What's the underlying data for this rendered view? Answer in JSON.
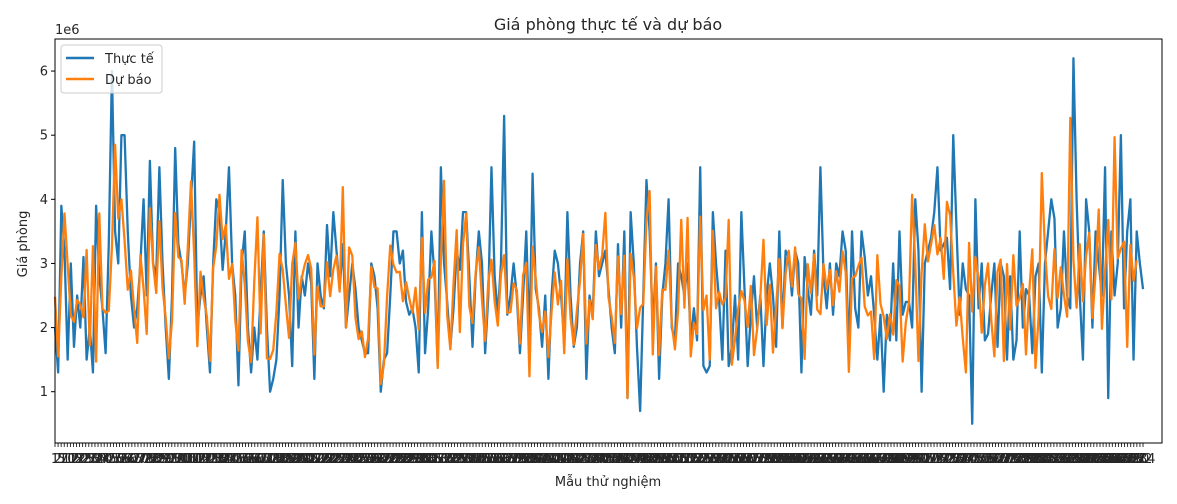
{
  "chart_data": {
    "type": "line",
    "title": "Giá phòng thực tế và dự báo",
    "xlabel": "Mẫu thử nghiệm",
    "ylabel": "Giá phòng",
    "y_offset_label": "1e6",
    "xlim": [
      0,
      350
    ],
    "ylim": [
      0.2,
      6.5
    ],
    "yticks": [
      1,
      2,
      3,
      4,
      5,
      6
    ],
    "x_tick_labels": [
      "1",
      "2",
      "5",
      "7",
      "10",
      "12",
      "15",
      "17",
      "20",
      "22",
      "25",
      "27",
      "30",
      "32",
      "35",
      "37",
      "40",
      "42",
      "45",
      "47",
      "50",
      "52",
      "55",
      "57",
      "60",
      "62",
      "65",
      "67",
      "70",
      "72",
      "75",
      "77",
      "80",
      "82",
      "85",
      "87",
      "90",
      "92",
      "95",
      "97",
      "100",
      "102",
      "105",
      "107",
      "110",
      "112",
      "115",
      "117",
      "120",
      "122",
      "125",
      "127",
      "130",
      "132",
      "135",
      "137",
      "140",
      "142",
      "145",
      "147",
      "150",
      "152",
      "155",
      "157",
      "160",
      "162",
      "165",
      "167",
      "170",
      "172",
      "175",
      "177",
      "180",
      "182",
      "185",
      "187",
      "190",
      "192",
      "195",
      "197",
      "200",
      "202",
      "205",
      "207",
      "210",
      "212",
      "215",
      "217",
      "220",
      "222",
      "225",
      "227",
      "230",
      "232",
      "235",
      "237",
      "240",
      "242",
      "245",
      "247",
      "250",
      "252",
      "255",
      "257",
      "260",
      "262",
      "265",
      "267",
      "270",
      "272",
      "275",
      "277",
      "280",
      "282",
      "285",
      "287",
      "290",
      "292",
      "295",
      "297",
      "300",
      "302",
      "305",
      "307",
      "310",
      "312",
      "315",
      "317",
      "320",
      "322",
      "325",
      "327",
      "330",
      "332",
      "335",
      "337",
      "340",
      "342",
      "345",
      "347",
      "350",
      "352",
      "355",
      "357",
      "360",
      "362",
      "365",
      "367",
      "370",
      "372",
      "375",
      "377",
      "380",
      "382",
      "385",
      "387",
      "390",
      "392",
      "395",
      "397",
      "400",
      "402",
      "405",
      "407",
      "410",
      "412",
      "415",
      "417",
      "420",
      "422",
      "425",
      "427",
      "430",
      "432",
      "435",
      "437",
      "440",
      "442",
      "445",
      "447",
      "450",
      "452",
      "455",
      "457",
      "460",
      "462",
      "465",
      "467",
      "470",
      "472",
      "475",
      "477",
      "480",
      "482",
      "485",
      "487",
      "490",
      "492",
      "495",
      "497",
      "500",
      "502",
      "505",
      "507",
      "510",
      "512",
      "515",
      "517",
      "520",
      "522",
      "525",
      "527",
      "530",
      "532",
      "535",
      "537",
      "540",
      "542",
      "545",
      "547",
      "550",
      "552",
      "555",
      "557",
      "560",
      "562",
      "565",
      "567",
      "570",
      "572",
      "575",
      "577",
      "580",
      "582",
      "585",
      "587",
      "590",
      "592",
      "595",
      "597",
      "600",
      "602",
      "605",
      "607",
      "610",
      "612",
      "615",
      "617",
      "620",
      "622",
      "625",
      "627",
      "630",
      "632",
      "635",
      "637",
      "640",
      "642",
      "645",
      "647",
      "650",
      "652",
      "655",
      "657",
      "660",
      "662",
      "665",
      "667",
      "670",
      "672",
      "675",
      "677",
      "680",
      "682",
      "685",
      "687",
      "690",
      "692",
      "695",
      "697",
      "700",
      "702",
      "705",
      "707",
      "710",
      "712",
      "715",
      "717",
      "720",
      "722",
      "725",
      "727",
      "730",
      "732",
      "735",
      "737",
      "740",
      "742",
      "745",
      "747",
      "750",
      "752",
      "755",
      "757",
      "760",
      "762",
      "765",
      "767",
      "770",
      "772",
      "775",
      "777",
      "780",
      "782",
      "785",
      "787",
      "790",
      "792",
      "795",
      "797",
      "800",
      "802",
      "805",
      "807",
      "810",
      "812",
      "815",
      "817",
      "820",
      "822",
      "825",
      "827",
      "830",
      "832",
      "835",
      "837",
      "840",
      "842",
      "845",
      "847",
      "850",
      "852",
      "855",
      "857",
      "860",
      "862",
      "865",
      "867",
      "870",
      "872",
      "875",
      "877",
      "880",
      "882",
      "884"
    ],
    "legend_position": "top-left",
    "grid": false,
    "series": [
      {
        "name": "Thực tế",
        "color": "#1f77b4",
        "values": [
          2.0,
          1.3,
          3.9,
          3.2,
          1.5,
          3.0,
          1.7,
          2.5,
          2.0,
          3.1,
          1.5,
          2.0,
          1.3,
          3.9,
          2.8,
          2.3,
          1.6,
          3.3,
          6.0,
          3.5,
          3.0,
          5.0,
          5.0,
          3.5,
          2.5,
          2.0,
          2.3,
          3.0,
          4.0,
          2.5,
          4.6,
          3.0,
          2.8,
          4.5,
          3.0,
          2.0,
          1.2,
          2.5,
          4.8,
          3.3,
          3.0,
          2.5,
          3.0,
          4.0,
          4.9,
          2.0,
          2.5,
          2.8,
          2.0,
          1.3,
          3.0,
          4.0,
          3.8,
          2.9,
          3.5,
          4.5,
          3.0,
          2.5,
          1.1,
          3.0,
          3.5,
          2.0,
          1.3,
          2.0,
          1.5,
          2.5,
          3.5,
          2.0,
          1.0,
          1.2,
          1.5,
          2.5,
          4.3,
          3.0,
          2.5,
          1.4,
          3.5,
          2.0,
          2.8,
          2.5,
          3.0,
          2.7,
          1.2,
          3.0,
          2.5,
          2.3,
          3.6,
          2.8,
          3.8,
          3.2,
          2.6,
          3.3,
          2.0,
          2.5,
          3.0,
          2.6,
          2.0,
          1.8,
          1.6,
          1.6,
          3.0,
          2.8,
          2.3,
          1.0,
          1.5,
          1.6,
          2.5,
          3.5,
          3.5,
          3.0,
          3.2,
          2.4,
          2.2,
          2.3,
          2.0,
          1.3,
          3.8,
          1.6,
          2.3,
          3.5,
          2.8,
          1.4,
          4.5,
          3.0,
          2.4,
          1.7,
          2.3,
          3.2,
          2.9,
          3.8,
          3.8,
          2.8,
          1.7,
          2.8,
          3.5,
          3.0,
          1.6,
          2.5,
          4.5,
          2.8,
          2.2,
          3.0,
          5.3,
          2.2,
          2.5,
          3.0,
          2.5,
          1.6,
          2.5,
          3.5,
          1.8,
          4.4,
          2.6,
          2.3,
          1.7,
          2.5,
          1.2,
          2.5,
          3.2,
          3.0,
          2.5,
          1.8,
          3.8,
          2.5,
          1.7,
          2.0,
          3.0,
          3.5,
          1.2,
          2.5,
          2.2,
          3.5,
          2.8,
          3.0,
          3.2,
          2.6,
          2.0,
          1.6,
          3.3,
          2.0,
          3.5,
          0.9,
          3.8,
          3.0,
          1.7,
          0.7,
          2.5,
          4.3,
          3.5,
          2.0,
          3.0,
          1.2,
          2.5,
          3.0,
          4.0,
          2.0,
          1.8,
          3.0,
          2.8,
          2.5,
          3.0,
          1.8,
          2.3,
          1.8,
          4.5,
          1.4,
          1.3,
          1.4,
          3.8,
          3.0,
          2.4,
          1.5,
          3.2,
          1.4,
          1.7,
          2.5,
          1.5,
          3.8,
          2.6,
          1.4,
          2.2,
          2.8,
          2.0,
          2.5,
          1.4,
          2.5,
          3.0,
          2.5,
          1.7,
          3.5,
          2.0,
          3.2,
          3.1,
          2.5,
          3.2,
          3.0,
          1.3,
          3.1,
          2.6,
          2.2,
          3.2,
          2.5,
          4.5,
          2.8,
          2.3,
          3.0,
          2.2,
          3.0,
          2.8,
          3.5,
          3.2,
          1.6,
          3.5,
          2.3,
          2.0,
          3.5,
          3.1,
          2.5,
          2.8,
          2.2,
          1.5,
          2.2,
          1.0,
          2.2,
          1.8,
          3.0,
          1.8,
          3.5,
          2.2,
          2.4,
          2.4,
          2.0,
          4.0,
          3.2,
          1.0,
          3.0,
          3.2,
          3.4,
          3.8,
          4.5,
          3.2,
          3.3,
          3.4,
          2.6,
          5.0,
          3.6,
          2.2,
          3.0,
          2.6,
          2.5,
          0.5,
          4.0,
          2.3,
          3.0,
          1.8,
          1.9,
          2.5,
          3.0,
          1.7,
          3.0,
          2.8,
          1.5,
          2.8,
          1.5,
          1.8,
          3.5,
          2.0,
          2.6,
          2.5,
          1.6,
          2.8,
          3.0,
          1.3,
          3.0,
          3.5,
          4.0,
          3.7,
          2.0,
          2.3,
          3.5,
          2.5,
          2.3,
          6.2,
          4.0,
          2.5,
          1.5,
          4.0,
          3.5,
          2.0,
          3.5,
          3.0,
          2.5,
          4.5,
          0.9,
          3.5,
          2.5,
          3.0,
          5.0,
          2.3,
          3.5,
          4.0,
          1.5,
          3.5,
          3.0,
          2.6
        ]
      },
      {
        "name": "Dự báo",
        "color": "#ff7f0e",
        "values": [
          2.48,
          1.55,
          2.78,
          3.78,
          2.98,
          2.19,
          2.09,
          2.43,
          2.36,
          2.16,
          3.21,
          1.72,
          3.27,
          1.47,
          3.78,
          2.3,
          2.23,
          2.26,
          3.26,
          4.85,
          3.7,
          4.0,
          3.36,
          2.59,
          2.89,
          2.31,
          1.76,
          3.13,
          2.61,
          1.9,
          3.86,
          3.0,
          2.54,
          3.66,
          2.62,
          2.15,
          1.52,
          2.11,
          3.79,
          3.1,
          3.05,
          2.37,
          3.26,
          4.28,
          3.14,
          1.71,
          2.87,
          2.46,
          2.18,
          1.48,
          2.93,
          3.27,
          4.07,
          3.38,
          3.6,
          2.76,
          2.99,
          2.11,
          1.64,
          3.21,
          2.67,
          1.78,
          1.46,
          2.71,
          3.72,
          1.91,
          3.45,
          1.52,
          1.51,
          1.65,
          2.24,
          3.15,
          2.9,
          2.35,
          1.84,
          2.99,
          3.32,
          2.45,
          2.77,
          2.99,
          3.13,
          2.92,
          1.58,
          2.64,
          2.33,
          2.33,
          3.02,
          2.49,
          2.91,
          3.12,
          2.56,
          4.19,
          2.0,
          3.25,
          3.12,
          2.15,
          1.82,
          1.94,
          1.54,
          1.83,
          2.95,
          2.63,
          2.61,
          1.12,
          1.43,
          2.49,
          3.28,
          2.98,
          2.86,
          2.87,
          2.41,
          2.71,
          2.46,
          2.23,
          2.62,
          1.97,
          3.4,
          2.23,
          2.75,
          2.78,
          3.04,
          1.37,
          3.04,
          4.29,
          2.19,
          1.66,
          2.68,
          3.52,
          1.93,
          3.3,
          3.78,
          2.33,
          2.07,
          2.86,
          3.25,
          2.43,
          1.79,
          2.72,
          3.06,
          2.41,
          2.03,
          2.83,
          3.13,
          2.23,
          2.24,
          2.69,
          2.59,
          1.75,
          2.82,
          3.01,
          1.24,
          3.26,
          2.76,
          2.21,
          1.93,
          2.25,
          1.54,
          2.25,
          2.86,
          2.36,
          2.73,
          1.6,
          3.07,
          2.16,
          1.73,
          2.26,
          2.73,
          3.46,
          1.75,
          2.43,
          2.13,
          3.29,
          2.91,
          3.13,
          3.79,
          2.47,
          2.17,
          1.76,
          3.11,
          2.21,
          3.12,
          0.9,
          3.15,
          2.79,
          1.99,
          2.31,
          2.37,
          3.67,
          4.13,
          1.58,
          2.95,
          1.57,
          2.59,
          2.59,
          3.2,
          2.07,
          1.66,
          2.26,
          3.68,
          2.31,
          3.71,
          1.55,
          2.07,
          1.9,
          3.73,
          2.27,
          2.5,
          1.5,
          3.51,
          2.3,
          2.55,
          2.36,
          2.47,
          3.68,
          1.42,
          1.82,
          2.29,
          2.57,
          2.42,
          2.01,
          2.65,
          1.57,
          1.98,
          2.47,
          3.37,
          2.04,
          2.67,
          1.61,
          2.33,
          3.07,
          1.99,
          2.84,
          3.2,
          2.64,
          3.25,
          2.52,
          2.45,
          1.51,
          2.99,
          2.54,
          3.14,
          2.28,
          2.21,
          2.99,
          2.6,
          2.9,
          2.35,
          2.88,
          2.56,
          3.19,
          2.86,
          1.31,
          2.77,
          2.8,
          2.96,
          3.09,
          2.33,
          2.19,
          2.25,
          1.51,
          3.13,
          2.37,
          2.17,
          1.82,
          2.21,
          1.89,
          2.74,
          2.65,
          1.47,
          2.08,
          2.39,
          4.07,
          2.98,
          1.48,
          2.86,
          3.61,
          3.03,
          3.3,
          3.6,
          3.14,
          3.4,
          2.76,
          3.96,
          3.75,
          2.86,
          2.03,
          2.47,
          1.84,
          1.3,
          3.32,
          2.25,
          3.1,
          2.75,
          1.92,
          2.66,
          3.0,
          2.13,
          1.55,
          2.87,
          3.06,
          1.48,
          2.99,
          1.97,
          3.13,
          2.34,
          2.46,
          2.68,
          1.58,
          2.55,
          3.22,
          1.37,
          2.19,
          4.41,
          3.21,
          2.49,
          2.29,
          3.22,
          2.46,
          2.94,
          2.51,
          2.17,
          5.27,
          3.05,
          2.31,
          3.3,
          2.41,
          3.12,
          3.48,
          2.15,
          2.85,
          3.84,
          1.98,
          2.88,
          3.68,
          2.44,
          4.97,
          3.08,
          3.23,
          3.34,
          1.7,
          3.29,
          2.73,
          3.05
        ]
      }
    ]
  }
}
